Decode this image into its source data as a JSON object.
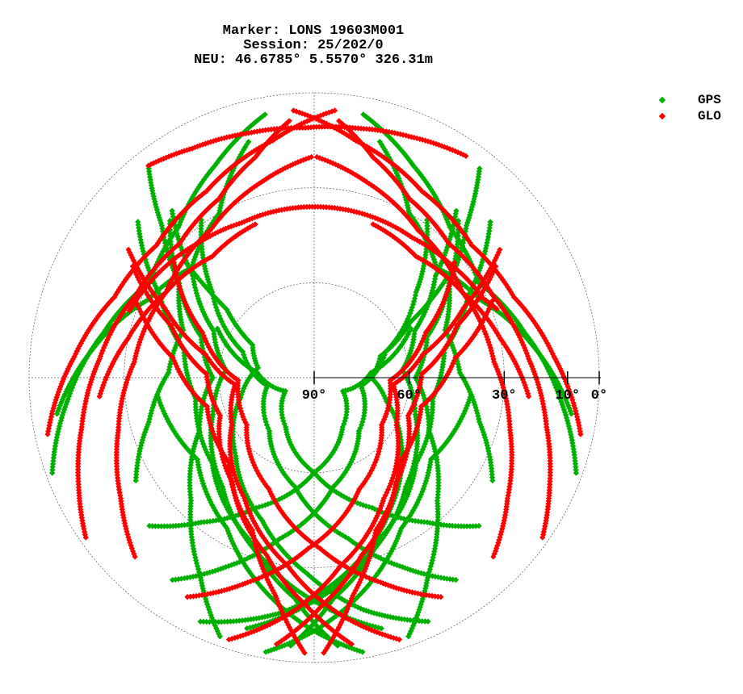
{
  "title": {
    "line1": "Marker: LONS 19603M001",
    "line2": "Session: 25/202/0",
    "line3": "NEU: 46.6785° 5.5570° 326.31m"
  },
  "legend": [
    {
      "name": "GPS",
      "color": "#00b000"
    },
    {
      "name": "GLO",
      "color": "#ff0000"
    }
  ],
  "chart_data": {
    "type": "scatter",
    "projection": "polar skyplot (azimuth 0° at top, clockwise; radius = 90° − elevation)",
    "elevation_ticks": [
      {
        "value": 90,
        "label": "90°"
      },
      {
        "value": 60,
        "label": "60°"
      },
      {
        "value": 30,
        "label": "30°"
      },
      {
        "value": 10,
        "label": "10°"
      },
      {
        "value": 0,
        "label": "0°"
      }
    ],
    "elevation_rings": [
      60,
      30,
      0
    ],
    "grid": true,
    "legend_position": "top-right",
    "series": [
      {
        "name": "GPS",
        "color": "#00b000",
        "tracks": [
          {
            "az": [
              205,
              188,
              170,
              150,
              128,
              108,
              90,
              72,
              60,
              52
            ],
            "el": [
              5,
              15,
              28,
              42,
              55,
              66,
              72,
              68,
              55,
              35
            ]
          },
          {
            "az": [
              195,
              182,
              165,
              140,
              110,
              85,
              65,
              50,
              40
            ],
            "el": [
              8,
              18,
              30,
              45,
              56,
              62,
              55,
              40,
              20
            ]
          },
          {
            "az": [
              185,
              175,
              158,
              130,
              100,
              78,
              62,
              48
            ],
            "el": [
              5,
              20,
              35,
              48,
              52,
              48,
              35,
              15
            ]
          },
          {
            "az": [
              160,
              150,
              135,
              115,
              90,
              70,
              55,
              45,
              38
            ],
            "el": [
              3,
              18,
              35,
              50,
              58,
              52,
              38,
              22,
              5
            ]
          },
          {
            "az": [
              215,
              205,
              192,
              170,
              140,
              100,
              70,
              50,
              35
            ],
            "el": [
              12,
              24,
              38,
              55,
              68,
              75,
              66,
              48,
              28
            ]
          },
          {
            "az": [
              228,
              218,
              204,
              180,
              150,
              115,
              85,
              62
            ],
            "el": [
              20,
              32,
              45,
              60,
              72,
              80,
              72,
              55
            ]
          },
          {
            "az": [
              155,
              168,
              182,
              200,
              225,
              255,
              280,
              298,
              308,
              312
            ],
            "el": [
              5,
              15,
              28,
              42,
              55,
              66,
              72,
              68,
              55,
              35
            ]
          },
          {
            "az": [
              165,
              178,
              195,
              220,
              250,
              275,
              295,
              310,
              320
            ],
            "el": [
              8,
              18,
              30,
              45,
              56,
              62,
              55,
              40,
              20
            ]
          },
          {
            "az": [
              175,
              185,
              202,
              230,
              260,
              282,
              298,
              312
            ],
            "el": [
              5,
              20,
              35,
              48,
              52,
              48,
              35,
              15
            ]
          },
          {
            "az": [
              200,
              210,
              225,
              245,
              270,
              290,
              305,
              315,
              322
            ],
            "el": [
              3,
              18,
              35,
              50,
              58,
              52,
              38,
              22,
              5
            ]
          },
          {
            "az": [
              145,
              155,
              168,
              190,
              220,
              260,
              290,
              310,
              325
            ],
            "el": [
              12,
              24,
              38,
              55,
              68,
              75,
              66,
              48,
              28
            ]
          },
          {
            "az": [
              132,
              142,
              156,
              180,
              210,
              245,
              275,
              298
            ],
            "el": [
              20,
              32,
              45,
              60,
              72,
              80,
              72,
              55
            ]
          },
          {
            "az": [
              250,
              265,
              282,
              300,
              318,
              335,
              350
            ],
            "el": [
              2,
              12,
              22,
              30,
              26,
              16,
              5
            ]
          },
          {
            "az": [
              110,
              95,
              78,
              60,
              42,
              25,
              10
            ],
            "el": [
              2,
              12,
              22,
              30,
              26,
              16,
              5
            ]
          },
          {
            "az": [
              262,
              278,
              295,
              312,
              330,
              345
            ],
            "el": [
              8,
              20,
              32,
              38,
              30,
              12
            ]
          },
          {
            "az": [
              98,
              82,
              65,
              48,
              30,
              15
            ],
            "el": [
              8,
              20,
              32,
              38,
              30,
              12
            ]
          },
          {
            "az": [
              240,
              255,
              272,
              290,
              305,
              318
            ],
            "el": [
              25,
              36,
              44,
              46,
              38,
              22
            ]
          },
          {
            "az": [
              120,
              105,
              88,
              70,
              55,
              42
            ],
            "el": [
              25,
              36,
              44,
              46,
              38,
              22
            ]
          },
          {
            "az": [
              190,
              180,
              168,
              150,
              125,
              95
            ],
            "el": [
              2,
              10,
              20,
              35,
              45,
              40
            ]
          },
          {
            "az": [
              170,
              180,
              192,
              210,
              235,
              265
            ],
            "el": [
              2,
              10,
              20,
              35,
              45,
              40
            ]
          }
        ]
      },
      {
        "name": "GLO",
        "color": "#ff0000",
        "tracks": [
          {
            "az": [
              198,
              186,
              172,
              150,
              120,
              95,
              78,
              65,
              55
            ],
            "el": [
              3,
              15,
              30,
              46,
              60,
              65,
              55,
              38,
              18
            ]
          },
          {
            "az": [
              188,
              178,
              165,
              142,
              112,
              88,
              70,
              58
            ],
            "el": [
              5,
              18,
              32,
              48,
              58,
              56,
              42,
              22
            ]
          },
          {
            "az": [
              178,
              170,
              158,
              135,
              105,
              82,
              66
            ],
            "el": [
              3,
              20,
              38,
              52,
              55,
              45,
              28
            ]
          },
          {
            "az": [
              210,
              198,
              182,
              158,
              125,
              92,
              68,
              50
            ],
            "el": [
              10,
              22,
              36,
              52,
              64,
              66,
              52,
              32
            ]
          },
          {
            "az": [
              162,
              174,
              188,
              210,
              240,
              265,
              282,
              295,
              305
            ],
            "el": [
              3,
              15,
              30,
              46,
              60,
              65,
              55,
              38,
              18
            ]
          },
          {
            "az": [
              172,
              182,
              195,
              218,
              248,
              272,
              290,
              302
            ],
            "el": [
              5,
              18,
              32,
              48,
              58,
              56,
              42,
              22
            ]
          },
          {
            "az": [
              182,
              190,
              202,
              225,
              255,
              278,
              294
            ],
            "el": [
              3,
              20,
              38,
              52,
              55,
              45,
              28
            ]
          },
          {
            "az": [
              150,
              162,
              178,
              202,
              235,
              268,
              292,
              310
            ],
            "el": [
              10,
              22,
              36,
              52,
              64,
              66,
              52,
              32
            ]
          },
          {
            "az": [
              235,
              245,
              258,
              275,
              295,
              315,
              332,
              345,
              355
            ],
            "el": [
              2,
              8,
              15,
              22,
              28,
              30,
              26,
              18,
              8
            ]
          },
          {
            "az": [
              125,
              115,
              102,
              85,
              65,
              45,
              28,
              15,
              5
            ],
            "el": [
              2,
              8,
              15,
              22,
              28,
              30,
              26,
              18,
              8
            ]
          },
          {
            "az": [
              258,
              275,
              292,
              310,
              330,
              350,
              5
            ],
            "el": [
              4,
              14,
              22,
              25,
              22,
              14,
              5
            ]
          },
          {
            "az": [
              102,
              85,
              68,
              50,
              30,
              10,
              355
            ],
            "el": [
              4,
              14,
              22,
              25,
              22,
              14,
              5
            ]
          },
          {
            "az": [
              225,
              238,
              255,
              275,
              300,
              325,
              345,
              360
            ],
            "el": [
              10,
              18,
              26,
              33,
              36,
              33,
              26,
              20
            ]
          },
          {
            "az": [
              135,
              122,
              105,
              85,
              60,
              35,
              15,
              0
            ],
            "el": [
              10,
              18,
              26,
              33,
              36,
              33,
              26,
              20
            ]
          },
          {
            "az": [
              290,
              305,
              320,
              335,
              350,
              5,
              20,
              35,
              50,
              65,
              70
            ],
            "el": [
              28,
              31,
              34,
              36,
              36,
              36,
              36,
              36,
              34,
              31,
              28
            ]
          },
          {
            "az": [
              265,
              282,
              300,
              320,
              340
            ],
            "el": [
              22,
              30,
              36,
              40,
              38
            ]
          },
          {
            "az": [
              95,
              78,
              60,
              40,
              20
            ],
            "el": [
              22,
              30,
              36,
              40,
              38
            ]
          },
          {
            "az": [
              322,
              332,
              345,
              358,
              10,
              22,
              35
            ],
            "el": [
              5,
              8,
              10,
              11,
              10,
              8,
              5
            ]
          }
        ]
      }
    ]
  }
}
